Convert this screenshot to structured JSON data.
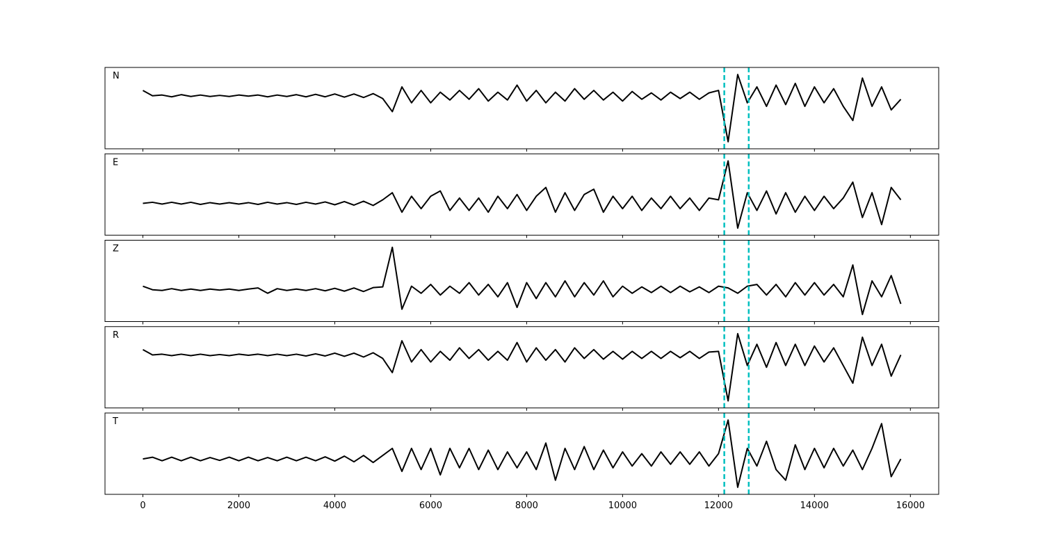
{
  "chart_data": [
    {
      "type": "line",
      "label": "N",
      "color": "#000000",
      "xlim": [
        -790,
        16590
      ],
      "ylim": [
        -1.5,
        0.8
      ],
      "xticks": [
        0,
        2000,
        4000,
        6000,
        8000,
        10000,
        12000,
        14000,
        16000
      ],
      "vlines": [
        12120,
        12630
      ],
      "vline_color": "#00bfbf",
      "x": [
        0,
        200,
        400,
        600,
        800,
        1000,
        1200,
        1400,
        1600,
        1800,
        2000,
        2200,
        2400,
        2600,
        2800,
        3000,
        3200,
        3400,
        3600,
        3800,
        4000,
        4200,
        4400,
        4600,
        4800,
        5000,
        5200,
        5400,
        5600,
        5800,
        6000,
        6200,
        6400,
        6600,
        6800,
        7000,
        7200,
        7400,
        7600,
        7800,
        8000,
        8200,
        8400,
        8600,
        8800,
        9000,
        9200,
        9400,
        9600,
        9800,
        10000,
        10200,
        10400,
        10600,
        10800,
        11000,
        11200,
        11400,
        11600,
        11800,
        12000,
        12200,
        12400,
        12600,
        12800,
        13000,
        13200,
        13400,
        13600,
        13800,
        14000,
        14200,
        14400,
        14600,
        14800,
        15000,
        15200,
        15400,
        15600,
        15800
      ],
      "values": [
        0.15,
        0,
        0.02,
        -0.03,
        0.03,
        -0.02,
        0.02,
        -0.02,
        0.01,
        -0.02,
        0.02,
        -0.01,
        0.02,
        -0.03,
        0.02,
        -0.02,
        0.03,
        -0.03,
        0.04,
        -0.03,
        0.05,
        -0.04,
        0.05,
        -0.05,
        0.06,
        -0.08,
        -0.45,
        0.25,
        -0.2,
        0.15,
        -0.2,
        0.1,
        -0.12,
        0.15,
        -0.1,
        0.2,
        -0.15,
        0.1,
        -0.12,
        0.3,
        -0.15,
        0.15,
        -0.2,
        0.1,
        -0.15,
        0.2,
        -0.1,
        0.15,
        -0.12,
        0.1,
        -0.15,
        0.12,
        -0.1,
        0.08,
        -0.12,
        0.1,
        -0.08,
        0.1,
        -0.1,
        0.08,
        0.15,
        -1.3,
        0.6,
        -0.2,
        0.25,
        -0.3,
        0.3,
        -0.25,
        0.35,
        -0.3,
        0.25,
        -0.2,
        0.2,
        -0.3,
        -0.7,
        0.5,
        -0.3,
        0.25,
        -0.4,
        -0.1
      ]
    },
    {
      "type": "line",
      "label": "E",
      "color": "#000000",
      "xlim": [
        -790,
        16590
      ],
      "ylim": [
        -0.9,
        1.4
      ],
      "xticks": [
        0,
        2000,
        4000,
        6000,
        8000,
        10000,
        12000,
        14000,
        16000
      ],
      "vlines": [
        12120,
        12630
      ],
      "vline_color": "#00bfbf",
      "x": [
        0,
        200,
        400,
        600,
        800,
        1000,
        1200,
        1400,
        1600,
        1800,
        2000,
        2200,
        2400,
        2600,
        2800,
        3000,
        3200,
        3400,
        3600,
        3800,
        4000,
        4200,
        4400,
        4600,
        4800,
        5000,
        5200,
        5400,
        5600,
        5800,
        6000,
        6200,
        6400,
        6600,
        6800,
        7000,
        7200,
        7400,
        7600,
        7800,
        8000,
        8200,
        8400,
        8600,
        8800,
        9000,
        9200,
        9400,
        9600,
        9800,
        10000,
        10200,
        10400,
        10600,
        10800,
        11000,
        11200,
        11400,
        11600,
        11800,
        12000,
        12200,
        12400,
        12600,
        12800,
        13000,
        13200,
        13400,
        13600,
        13800,
        14000,
        14200,
        14400,
        14600,
        14800,
        15000,
        15200,
        15400,
        15600,
        15800
      ],
      "values": [
        0,
        0.03,
        -0.02,
        0.03,
        -0.02,
        0.03,
        -0.03,
        0.02,
        -0.02,
        0.02,
        -0.02,
        0.02,
        -0.03,
        0.03,
        -0.02,
        0.02,
        -0.03,
        0.03,
        -0.02,
        0.04,
        -0.04,
        0.05,
        -0.05,
        0.06,
        -0.06,
        0.1,
        0.3,
        -0.25,
        0.2,
        -0.15,
        0.2,
        0.35,
        -0.2,
        0.15,
        -0.2,
        0.15,
        -0.25,
        0.2,
        -0.15,
        0.25,
        -0.2,
        0.2,
        0.45,
        -0.25,
        0.3,
        -0.2,
        0.25,
        0.4,
        -0.25,
        0.2,
        -0.15,
        0.2,
        -0.2,
        0.15,
        -0.15,
        0.2,
        -0.15,
        0.15,
        -0.2,
        0.15,
        0.1,
        1.2,
        -0.7,
        0.3,
        -0.2,
        0.35,
        -0.3,
        0.3,
        -0.25,
        0.2,
        -0.2,
        0.2,
        -0.15,
        0.15,
        0.6,
        -0.4,
        0.3,
        -0.6,
        0.45,
        0.1
      ]
    },
    {
      "type": "line",
      "label": "Z",
      "color": "#000000",
      "xlim": [
        -790,
        16590
      ],
      "ylim": [
        -0.9,
        1.4
      ],
      "xticks": [
        0,
        2000,
        4000,
        6000,
        8000,
        10000,
        12000,
        14000,
        16000
      ],
      "vlines": [
        12120,
        12630
      ],
      "vline_color": "#00bfbf",
      "x": [
        0,
        200,
        400,
        600,
        800,
        1000,
        1200,
        1400,
        1600,
        1800,
        2000,
        2200,
        2400,
        2600,
        2800,
        3000,
        3200,
        3400,
        3600,
        3800,
        4000,
        4200,
        4400,
        4600,
        4800,
        5000,
        5200,
        5400,
        5600,
        5800,
        6000,
        6200,
        6400,
        6600,
        6800,
        7000,
        7200,
        7400,
        7600,
        7800,
        8000,
        8200,
        8400,
        8600,
        8800,
        9000,
        9200,
        9400,
        9600,
        9800,
        10000,
        10200,
        10400,
        10600,
        10800,
        11000,
        11200,
        11400,
        11600,
        11800,
        12000,
        12200,
        12400,
        12600,
        12800,
        13000,
        13200,
        13400,
        13600,
        13800,
        14000,
        14200,
        14400,
        14600,
        14800,
        15000,
        15200,
        15400,
        15600,
        15800
      ],
      "values": [
        0.1,
        0,
        -0.02,
        0.03,
        -0.02,
        0.02,
        -0.02,
        0.02,
        -0.01,
        0.02,
        -0.02,
        0.02,
        0.05,
        -0.1,
        0.03,
        -0.02,
        0.02,
        -0.02,
        0.03,
        -0.03,
        0.04,
        -0.04,
        0.05,
        -0.05,
        0.06,
        0.08,
        1.2,
        -0.55,
        0.1,
        -0.1,
        0.15,
        -0.15,
        0.1,
        -0.1,
        0.2,
        -0.15,
        0.15,
        -0.2,
        0.2,
        -0.5,
        0.2,
        -0.25,
        0.2,
        -0.2,
        0.25,
        -0.2,
        0.2,
        -0.15,
        0.25,
        -0.2,
        0.1,
        -0.1,
        0.08,
        -0.08,
        0.1,
        -0.08,
        0.1,
        -0.06,
        0.08,
        -0.08,
        0.1,
        0.05,
        -0.1,
        0.1,
        0.15,
        -0.15,
        0.15,
        -0.2,
        0.2,
        -0.15,
        0.2,
        -0.15,
        0.15,
        -0.2,
        0.7,
        -0.7,
        0.25,
        -0.2,
        0.4,
        -0.4
      ]
    },
    {
      "type": "line",
      "label": "R",
      "color": "#000000",
      "xlim": [
        -790,
        16590
      ],
      "ylim": [
        -1.5,
        0.8
      ],
      "xticks": [
        0,
        2000,
        4000,
        6000,
        8000,
        10000,
        12000,
        14000,
        16000
      ],
      "vlines": [
        12120,
        12630
      ],
      "vline_color": "#00bfbf",
      "x": [
        0,
        200,
        400,
        600,
        800,
        1000,
        1200,
        1400,
        1600,
        1800,
        2000,
        2200,
        2400,
        2600,
        2800,
        3000,
        3200,
        3400,
        3600,
        3800,
        4000,
        4200,
        4400,
        4600,
        4800,
        5000,
        5200,
        5400,
        5600,
        5800,
        6000,
        6200,
        6400,
        6600,
        6800,
        7000,
        7200,
        7400,
        7600,
        7800,
        8000,
        8200,
        8400,
        8600,
        8800,
        9000,
        9200,
        9400,
        9600,
        9800,
        10000,
        10200,
        10400,
        10600,
        10800,
        11000,
        11200,
        11400,
        11600,
        11800,
        12000,
        12200,
        12400,
        12600,
        12800,
        13000,
        13200,
        13400,
        13600,
        13800,
        14000,
        14200,
        14400,
        14600,
        14800,
        15000,
        15200,
        15400,
        15600,
        15800
      ],
      "values": [
        0.15,
        0,
        0.02,
        -0.02,
        0.02,
        -0.02,
        0.02,
        -0.02,
        0.01,
        -0.02,
        0.02,
        -0.01,
        0.02,
        -0.02,
        0.02,
        -0.02,
        0.02,
        -0.03,
        0.03,
        -0.03,
        0.05,
        -0.04,
        0.05,
        -0.06,
        0.06,
        -0.1,
        -0.5,
        0.4,
        -0.2,
        0.15,
        -0.2,
        0.1,
        -0.15,
        0.2,
        -0.1,
        0.15,
        -0.15,
        0.1,
        -0.15,
        0.35,
        -0.2,
        0.2,
        -0.15,
        0.15,
        -0.2,
        0.2,
        -0.1,
        0.15,
        -0.12,
        0.1,
        -0.12,
        0.1,
        -0.1,
        0.1,
        -0.1,
        0.1,
        -0.08,
        0.1,
        -0.1,
        0.08,
        0.1,
        -1.3,
        0.6,
        -0.3,
        0.3,
        -0.35,
        0.35,
        -0.3,
        0.3,
        -0.3,
        0.25,
        -0.2,
        0.2,
        -0.3,
        -0.8,
        0.5,
        -0.3,
        0.3,
        -0.6,
        0.0
      ]
    },
    {
      "type": "line",
      "label": "T",
      "color": "#000000",
      "xlim": [
        -790,
        16590
      ],
      "ylim": [
        -1.0,
        1.3
      ],
      "xticks": [
        0,
        2000,
        4000,
        6000,
        8000,
        10000,
        12000,
        14000,
        16000
      ],
      "vlines": [
        12120,
        12630
      ],
      "vline_color": "#00bfbf",
      "x": [
        0,
        200,
        400,
        600,
        800,
        1000,
        1200,
        1400,
        1600,
        1800,
        2000,
        2200,
        2400,
        2600,
        2800,
        3000,
        3200,
        3400,
        3600,
        3800,
        4000,
        4200,
        4400,
        4600,
        4800,
        5000,
        5200,
        5400,
        5600,
        5800,
        6000,
        6200,
        6400,
        6600,
        6800,
        7000,
        7200,
        7400,
        7600,
        7800,
        8000,
        8200,
        8400,
        8600,
        8800,
        9000,
        9200,
        9400,
        9600,
        9800,
        10000,
        10200,
        10400,
        10600,
        10800,
        11000,
        11200,
        11400,
        11600,
        11800,
        12000,
        12200,
        12400,
        12600,
        12800,
        13000,
        13200,
        13400,
        13600,
        13800,
        14000,
        14200,
        14400,
        14600,
        14800,
        15000,
        15200,
        15400,
        15600,
        15800
      ],
      "values": [
        0,
        0.05,
        -0.05,
        0.05,
        -0.05,
        0.05,
        -0.05,
        0.04,
        -0.04,
        0.05,
        -0.05,
        0.05,
        -0.05,
        0.04,
        -0.05,
        0.05,
        -0.05,
        0.05,
        -0.05,
        0.06,
        -0.06,
        0.08,
        -0.08,
        0.1,
        -0.1,
        0.1,
        0.3,
        -0.35,
        0.3,
        -0.3,
        0.3,
        -0.45,
        0.3,
        -0.25,
        0.3,
        -0.3,
        0.25,
        -0.3,
        0.2,
        -0.25,
        0.2,
        -0.3,
        0.45,
        -0.6,
        0.3,
        -0.3,
        0.35,
        -0.3,
        0.25,
        -0.25,
        0.2,
        -0.2,
        0.15,
        -0.2,
        0.2,
        -0.15,
        0.2,
        -0.15,
        0.2,
        -0.2,
        0.15,
        1.1,
        -0.8,
        0.3,
        -0.2,
        0.5,
        -0.3,
        -0.6,
        0.4,
        -0.3,
        0.3,
        -0.25,
        0.3,
        -0.2,
        0.25,
        -0.3,
        0.3,
        1.0,
        -0.5,
        0.0
      ]
    }
  ]
}
